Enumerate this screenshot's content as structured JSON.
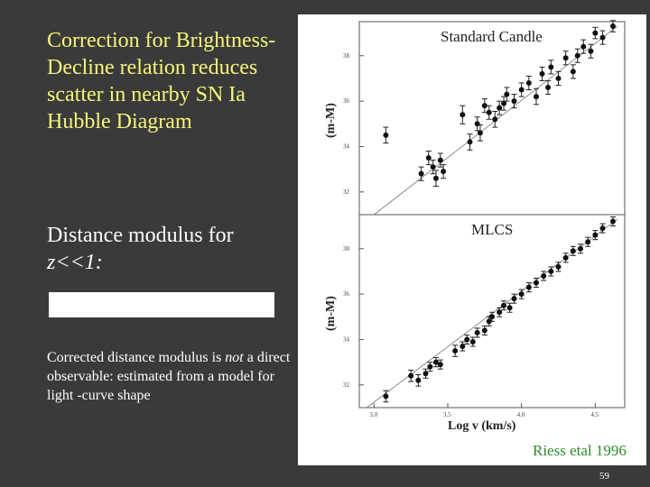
{
  "slide": {
    "headline": "Correction for Brightness-Decline relation reduces scatter in nearby SN Ia Hubble Diagram",
    "modulus_text": "Distance modulus for",
    "modulus_condition": "z<<1:",
    "corrected_prefix": "Corrected distance modulus is",
    "corrected_not": "not",
    "corrected_rest": "a direct observable: estimated from a model for light -curve shape",
    "citation": "Riess etal 1996",
    "page_number": "59"
  },
  "colors": {
    "background": "#3a3a3a",
    "headline": "#f5f57a",
    "citation": "#2a8a2a"
  },
  "chart_data": [
    {
      "type": "scatter",
      "title": "Standard Candle",
      "xlabel": "",
      "ylabel": "(m-M)",
      "xlim": [
        2.9,
        4.7
      ],
      "ylim": [
        31.0,
        39.5
      ],
      "yticks": [
        32,
        34,
        36,
        38
      ],
      "ytick_labels": [
        "32",
        "34",
        "36",
        "38"
      ],
      "fit_line": {
        "x": [
          3.0,
          4.65
        ],
        "y": [
          31.0,
          39.3
        ]
      },
      "points": [
        {
          "x": 3.08,
          "y": 34.5,
          "err": 0.35
        },
        {
          "x": 3.32,
          "y": 32.8,
          "err": 0.3
        },
        {
          "x": 3.37,
          "y": 33.5,
          "err": 0.3
        },
        {
          "x": 3.4,
          "y": 33.1,
          "err": 0.3
        },
        {
          "x": 3.42,
          "y": 32.6,
          "err": 0.35
        },
        {
          "x": 3.45,
          "y": 33.4,
          "err": 0.3
        },
        {
          "x": 3.47,
          "y": 32.9,
          "err": 0.3
        },
        {
          "x": 3.6,
          "y": 35.4,
          "err": 0.4
        },
        {
          "x": 3.65,
          "y": 34.2,
          "err": 0.35
        },
        {
          "x": 3.7,
          "y": 35.0,
          "err": 0.3
        },
        {
          "x": 3.72,
          "y": 34.6,
          "err": 0.35
        },
        {
          "x": 3.75,
          "y": 35.8,
          "err": 0.3
        },
        {
          "x": 3.78,
          "y": 35.5,
          "err": 0.3
        },
        {
          "x": 3.82,
          "y": 35.2,
          "err": 0.35
        },
        {
          "x": 3.85,
          "y": 35.7,
          "err": 0.3
        },
        {
          "x": 3.88,
          "y": 35.9,
          "err": 0.3
        },
        {
          "x": 3.9,
          "y": 36.3,
          "err": 0.3
        },
        {
          "x": 3.95,
          "y": 36.0,
          "err": 0.3
        },
        {
          "x": 4.0,
          "y": 36.5,
          "err": 0.3
        },
        {
          "x": 4.05,
          "y": 36.8,
          "err": 0.3
        },
        {
          "x": 4.1,
          "y": 36.2,
          "err": 0.35
        },
        {
          "x": 4.14,
          "y": 37.2,
          "err": 0.3
        },
        {
          "x": 4.18,
          "y": 36.6,
          "err": 0.3
        },
        {
          "x": 4.2,
          "y": 37.5,
          "err": 0.3
        },
        {
          "x": 4.25,
          "y": 37.0,
          "err": 0.3
        },
        {
          "x": 4.3,
          "y": 37.9,
          "err": 0.3
        },
        {
          "x": 4.35,
          "y": 37.3,
          "err": 0.3
        },
        {
          "x": 4.38,
          "y": 38.0,
          "err": 0.3
        },
        {
          "x": 4.42,
          "y": 38.4,
          "err": 0.3
        },
        {
          "x": 4.47,
          "y": 38.2,
          "err": 0.3
        },
        {
          "x": 4.5,
          "y": 39.0,
          "err": 0.25
        },
        {
          "x": 4.55,
          "y": 38.8,
          "err": 0.3
        },
        {
          "x": 4.62,
          "y": 39.3,
          "err": 0.25
        }
      ]
    },
    {
      "type": "scatter",
      "title": "MLCS",
      "xlabel": "Log v (km/s)",
      "ylabel": "(m-M)",
      "xlim": [
        2.9,
        4.7
      ],
      "ylim": [
        31.0,
        39.5
      ],
      "yticks": [
        32,
        34,
        36,
        38
      ],
      "ytick_labels": [
        "32",
        "34",
        "36",
        "38"
      ],
      "xticks": [
        3.0,
        3.5,
        4.0,
        4.5
      ],
      "xtick_labels": [
        "3.0",
        "3.5",
        "4.0",
        "4.5"
      ],
      "fit_line": {
        "x": [
          2.95,
          4.65
        ],
        "y": [
          31.0,
          39.3
        ]
      },
      "points": [
        {
          "x": 3.08,
          "y": 31.5,
          "err": 0.25
        },
        {
          "x": 3.25,
          "y": 32.4,
          "err": 0.25
        },
        {
          "x": 3.3,
          "y": 32.2,
          "err": 0.25
        },
        {
          "x": 3.35,
          "y": 32.5,
          "err": 0.2
        },
        {
          "x": 3.38,
          "y": 32.8,
          "err": 0.2
        },
        {
          "x": 3.42,
          "y": 33.0,
          "err": 0.2
        },
        {
          "x": 3.45,
          "y": 32.9,
          "err": 0.2
        },
        {
          "x": 3.55,
          "y": 33.5,
          "err": 0.25
        },
        {
          "x": 3.6,
          "y": 33.7,
          "err": 0.2
        },
        {
          "x": 3.63,
          "y": 34.0,
          "err": 0.2
        },
        {
          "x": 3.67,
          "y": 33.9,
          "err": 0.2
        },
        {
          "x": 3.7,
          "y": 34.3,
          "err": 0.2
        },
        {
          "x": 3.75,
          "y": 34.4,
          "err": 0.2
        },
        {
          "x": 3.78,
          "y": 34.8,
          "err": 0.2
        },
        {
          "x": 3.8,
          "y": 35.0,
          "err": 0.2
        },
        {
          "x": 3.85,
          "y": 35.2,
          "err": 0.2
        },
        {
          "x": 3.88,
          "y": 35.5,
          "err": 0.2
        },
        {
          "x": 3.92,
          "y": 35.4,
          "err": 0.2
        },
        {
          "x": 3.95,
          "y": 35.8,
          "err": 0.2
        },
        {
          "x": 4.0,
          "y": 36.0,
          "err": 0.2
        },
        {
          "x": 4.05,
          "y": 36.3,
          "err": 0.2
        },
        {
          "x": 4.1,
          "y": 36.5,
          "err": 0.2
        },
        {
          "x": 4.15,
          "y": 36.8,
          "err": 0.2
        },
        {
          "x": 4.2,
          "y": 37.0,
          "err": 0.2
        },
        {
          "x": 4.25,
          "y": 37.2,
          "err": 0.2
        },
        {
          "x": 4.3,
          "y": 37.6,
          "err": 0.2
        },
        {
          "x": 4.35,
          "y": 37.9,
          "err": 0.2
        },
        {
          "x": 4.4,
          "y": 38.0,
          "err": 0.2
        },
        {
          "x": 4.45,
          "y": 38.3,
          "err": 0.2
        },
        {
          "x": 4.5,
          "y": 38.6,
          "err": 0.2
        },
        {
          "x": 4.55,
          "y": 38.9,
          "err": 0.2
        },
        {
          "x": 4.62,
          "y": 39.2,
          "err": 0.2
        }
      ]
    }
  ]
}
